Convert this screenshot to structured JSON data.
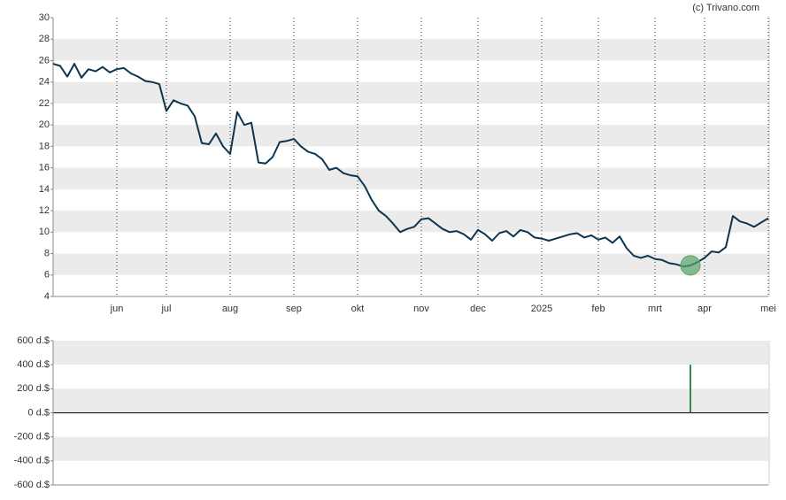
{
  "credit": "(c) Trivano.com",
  "chart_data": [
    {
      "type": "line",
      "color": "#0d3550",
      "grid": "bands",
      "highlight_index": 90,
      "highlight_color": "#5aa56a",
      "ylim": [
        4,
        30
      ],
      "yticks": [
        4,
        6,
        8,
        10,
        12,
        14,
        16,
        18,
        20,
        22,
        24,
        26,
        28,
        30
      ],
      "categories": [
        null,
        null,
        null,
        null,
        null,
        null,
        null,
        null,
        null,
        "jun",
        null,
        null,
        null,
        null,
        null,
        null,
        "jul",
        null,
        null,
        null,
        null,
        null,
        null,
        null,
        null,
        "aug",
        null,
        null,
        null,
        null,
        null,
        null,
        null,
        null,
        "sep",
        null,
        null,
        null,
        null,
        null,
        null,
        null,
        null,
        "okt",
        null,
        null,
        null,
        null,
        null,
        null,
        null,
        null,
        "nov",
        null,
        null,
        null,
        null,
        null,
        null,
        null,
        "dec",
        null,
        null,
        null,
        null,
        null,
        null,
        null,
        null,
        "2025",
        null,
        null,
        null,
        null,
        null,
        null,
        null,
        "feb",
        null,
        null,
        null,
        null,
        null,
        null,
        null,
        "mrt",
        null,
        null,
        null,
        null,
        null,
        null,
        "apr",
        null,
        null,
        null,
        null,
        null,
        null,
        null,
        null,
        "mei"
      ],
      "values": [
        25.7,
        25.5,
        24.5,
        25.7,
        24.4,
        25.2,
        25.0,
        25.4,
        24.9,
        25.2,
        25.3,
        24.8,
        24.5,
        24.1,
        24.0,
        23.8,
        21.3,
        22.3,
        22.0,
        21.8,
        20.8,
        18.3,
        18.2,
        19.2,
        18.0,
        17.3,
        21.2,
        20.0,
        20.2,
        16.5,
        16.4,
        17.0,
        18.4,
        18.5,
        18.7,
        18.0,
        17.5,
        17.3,
        16.8,
        15.8,
        16.0,
        15.5,
        15.3,
        15.2,
        14.3,
        13.0,
        12.0,
        11.5,
        10.8,
        10.0,
        10.3,
        10.5,
        11.2,
        11.3,
        10.8,
        10.3,
        10.0,
        10.1,
        9.8,
        9.3,
        10.2,
        9.8,
        9.2,
        9.9,
        10.1,
        9.6,
        10.2,
        10.0,
        9.5,
        9.4,
        9.2,
        9.4,
        9.6,
        9.8,
        9.9,
        9.5,
        9.7,
        9.3,
        9.5,
        9.0,
        9.6,
        8.5,
        7.8,
        7.6,
        7.8,
        7.5,
        7.4,
        7.1,
        7.0,
        6.8,
        6.9,
        7.2,
        7.6,
        8.2,
        8.1,
        8.6,
        11.5,
        11.0,
        10.8,
        10.5,
        10.9,
        11.3
      ]
    },
    {
      "type": "bar",
      "color": "#2e8b57",
      "grid": "bands",
      "ylim": [
        -600,
        600
      ],
      "yticks": [
        {
          "value": -600,
          "label": "-600 d.$"
        },
        {
          "value": -400,
          "label": "-400 d.$"
        },
        {
          "value": -200,
          "label": "-200 d.$"
        },
        {
          "value": 0,
          "label": "0 d.$"
        },
        {
          "value": 200,
          "label": "200 d.$"
        },
        {
          "value": 400,
          "label": "400 d.$"
        },
        {
          "value": 600,
          "label": "600 d.$"
        }
      ],
      "values": [
        null,
        null,
        null,
        null,
        null,
        null,
        null,
        null,
        null,
        null,
        null,
        null,
        null,
        null,
        null,
        null,
        null,
        null,
        null,
        null,
        null,
        null,
        null,
        null,
        null,
        null,
        null,
        null,
        null,
        null,
        null,
        null,
        null,
        null,
        null,
        null,
        null,
        null,
        null,
        null,
        null,
        null,
        null,
        null,
        null,
        null,
        null,
        null,
        null,
        null,
        null,
        null,
        null,
        null,
        null,
        null,
        null,
        null,
        null,
        null,
        null,
        null,
        null,
        null,
        null,
        null,
        null,
        null,
        null,
        null,
        null,
        null,
        null,
        null,
        null,
        null,
        null,
        null,
        null,
        null,
        null,
        null,
        null,
        null,
        null,
        null,
        null,
        null,
        null,
        null,
        400,
        null,
        null,
        null,
        null,
        null,
        null,
        null,
        null,
        null,
        null,
        null
      ]
    }
  ]
}
